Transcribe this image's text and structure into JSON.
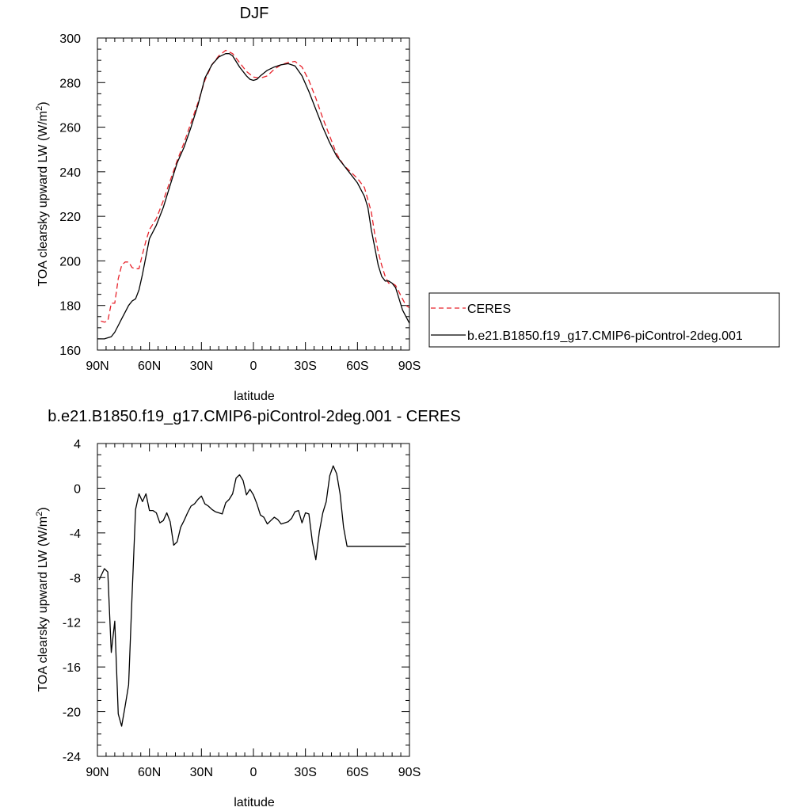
{
  "chart_data": [
    {
      "type": "line",
      "title": "DJF",
      "xlabel": "latitude",
      "ylabel": "TOA clearsky upward LW (W/m",
      "ylabel_sup": "2",
      "ylabel_close": ")",
      "xlim": [
        90,
        -90
      ],
      "ylim": [
        160,
        300
      ],
      "x_ticks": [
        {
          "value": 90,
          "label": "90N"
        },
        {
          "value": 60,
          "label": "60N"
        },
        {
          "value": 30,
          "label": "30N"
        },
        {
          "value": 0,
          "label": "0"
        },
        {
          "value": -30,
          "label": "30S"
        },
        {
          "value": -60,
          "label": "60S"
        },
        {
          "value": -90,
          "label": "90S"
        }
      ],
      "y_ticks": [
        160,
        180,
        200,
        220,
        240,
        260,
        280,
        300
      ],
      "legend": "outside-right",
      "series": [
        {
          "name": "CERES",
          "color": "#e8232b",
          "style": "dashed",
          "x": [
            88,
            86,
            84,
            82,
            80,
            78,
            76,
            74,
            72,
            70,
            68,
            66,
            64,
            62,
            60,
            56,
            52,
            48,
            44,
            40,
            36,
            32,
            28,
            24,
            20,
            16,
            12,
            8,
            4,
            0,
            -4,
            -8,
            -12,
            -16,
            -20,
            -24,
            -28,
            -32,
            -36,
            -40,
            -44,
            -48,
            -52,
            -56,
            -60,
            -64,
            -68,
            -70,
            -72,
            -74,
            -76,
            -78,
            -80,
            -82,
            -84,
            -86,
            -88,
            -90
          ],
          "y": [
            173,
            172.5,
            173,
            181,
            181,
            192,
            198,
            199.5,
            199.5,
            197,
            196.5,
            196.5,
            203,
            209,
            214,
            219,
            227,
            236,
            245,
            253,
            262,
            271,
            281,
            288,
            292,
            294.5,
            293,
            289,
            285,
            282.5,
            282,
            283,
            286,
            288,
            289,
            289.5,
            287,
            281,
            273,
            264,
            256,
            248,
            243,
            240,
            237,
            233,
            222,
            212,
            204,
            198,
            193,
            190,
            190,
            189,
            186,
            183,
            180,
            179
          ]
        },
        {
          "name": "b.e21.B1850.f19_g17.CMIP6-piControl-2deg.001",
          "color": "#000000",
          "style": "solid",
          "x": [
            90,
            88,
            86,
            84,
            82,
            80,
            78,
            76,
            74,
            72,
            70,
            68,
            66,
            64,
            62,
            60,
            56,
            52,
            48,
            44,
            40,
            36,
            32,
            28,
            24,
            20,
            16,
            14,
            12,
            8,
            4,
            2,
            0,
            -2,
            -4,
            -8,
            -12,
            -16,
            -20,
            -24,
            -28,
            -32,
            -36,
            -40,
            -44,
            -48,
            -52,
            -56,
            -60,
            -64,
            -66,
            -68,
            -70,
            -72,
            -74,
            -76,
            -78,
            -80,
            -82,
            -84,
            -86,
            -88,
            -90
          ],
          "y": [
            165,
            165,
            165,
            165.5,
            166,
            168,
            171,
            174,
            177,
            180,
            182,
            183,
            187,
            194,
            202,
            210,
            216,
            224,
            234,
            244,
            251,
            260,
            270,
            282,
            288,
            291.5,
            293,
            293,
            292,
            287,
            283,
            281.5,
            281,
            281.5,
            283,
            285.5,
            287,
            288,
            288.5,
            287.5,
            283,
            276,
            268,
            260,
            253,
            247,
            243,
            239,
            235,
            229,
            224,
            214,
            206,
            198,
            193,
            191,
            191,
            190,
            188,
            183,
            178,
            175,
            172
          ]
        }
      ]
    },
    {
      "type": "line",
      "title": "b.e21.B1850.f19_g17.CMIP6-piControl-2deg.001 - CERES",
      "xlabel": "latitude",
      "ylabel": "TOA clearsky upward LW (W/m",
      "ylabel_sup": "2",
      "ylabel_close": ")",
      "xlim": [
        90,
        -90
      ],
      "ylim": [
        -24,
        4
      ],
      "x_ticks": [
        {
          "value": 90,
          "label": "90N"
        },
        {
          "value": 60,
          "label": "60N"
        },
        {
          "value": 30,
          "label": "30N"
        },
        {
          "value": 0,
          "label": "0"
        },
        {
          "value": -30,
          "label": "30S"
        },
        {
          "value": -60,
          "label": "60S"
        },
        {
          "value": -90,
          "label": "90S"
        }
      ],
      "y_ticks": [
        -24,
        -20,
        -16,
        -12,
        -8,
        -4,
        0,
        4
      ],
      "series": [
        {
          "name": "",
          "color": "#000000",
          "style": "solid",
          "x": [
            89,
            86,
            84,
            82,
            80,
            78,
            76,
            74,
            72,
            70,
            68,
            66,
            64,
            62,
            60,
            58,
            56,
            54,
            52,
            50,
            48,
            46,
            44,
            42,
            40,
            38,
            36,
            34,
            32,
            30,
            28,
            26,
            24,
            22,
            20,
            18,
            16,
            14,
            12,
            10,
            8,
            6,
            4,
            2,
            0,
            -2,
            -4,
            -6,
            -8,
            -10,
            -12,
            -14,
            -16,
            -18,
            -20,
            -22,
            -24,
            -26,
            -28,
            -30,
            -32,
            -34,
            -36,
            -38,
            -40,
            -42,
            -44,
            -46,
            -48,
            -50,
            -52,
            -54,
            -56,
            -58,
            -60,
            -62,
            -64,
            -66,
            -68,
            -70,
            -72,
            -74,
            -76,
            -78,
            -80,
            -82,
            -84,
            -86,
            -88
          ],
          "y": [
            -8.2,
            -7.2,
            -7.5,
            -14.7,
            -11.9,
            -20.2,
            -21.3,
            -19.5,
            -17.6,
            -9.5,
            -1.9,
            -0.5,
            -1.2,
            -0.5,
            -2,
            -2,
            -2.2,
            -3.1,
            -2.9,
            -2.2,
            -3,
            -5.1,
            -4.8,
            -3.5,
            -2.9,
            -2.2,
            -1.6,
            -1.4,
            -1,
            -0.7,
            -1.4,
            -1.6,
            -1.9,
            -2.1,
            -2.2,
            -2.3,
            -1.3,
            -1,
            -0.5,
            0.9,
            1.2,
            0.7,
            -0.6,
            -0.1,
            -0.6,
            -1.4,
            -2.4,
            -2.6,
            -3.2,
            -2.9,
            -2.6,
            -2.8,
            -3.2,
            -3.1,
            -3,
            -2.7,
            -2.1,
            -2,
            -3.1,
            -2.2,
            -2.3,
            -4.8,
            -6.4,
            -3.9,
            -2.2,
            -1.2,
            1.1,
            2,
            1.3,
            -0.5,
            -3.5,
            -5.2,
            -5.2,
            -5.2,
            -5.2,
            -5.2,
            -5.2,
            -5.2,
            -5.2,
            -5.2,
            -5.2,
            -5.2,
            -5.2,
            -5.2,
            -5.2,
            -5.2,
            -5.2,
            -5.2,
            -5.2
          ]
        }
      ]
    }
  ]
}
